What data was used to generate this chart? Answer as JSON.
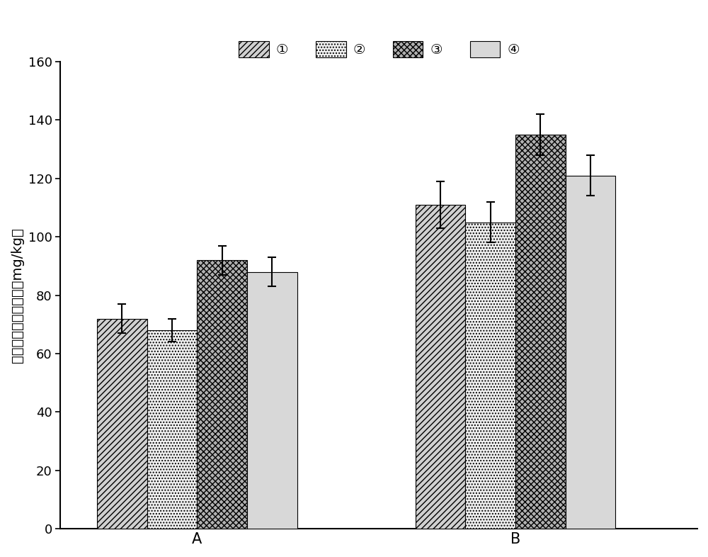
{
  "groups": [
    "A",
    "B"
  ],
  "series_labels": [
    "①",
    "②",
    "③",
    "④"
  ],
  "values": {
    "A": [
      72,
      68,
      92,
      88
    ],
    "B": [
      111,
      105,
      135,
      121
    ]
  },
  "errors": {
    "A": [
      5,
      4,
      5,
      5
    ],
    "B": [
      8,
      7,
      7,
      7
    ]
  },
  "ylabel": "植物地上部分镁含量（mg/kg）",
  "ylim": [
    0,
    160
  ],
  "yticks": [
    0,
    20,
    40,
    60,
    80,
    100,
    120,
    140,
    160
  ],
  "bar_width": 0.55,
  "background_color": "#ffffff",
  "bar_edge_color": "#000000",
  "error_capsize": 4,
  "hatch_patterns": [
    "////",
    "....",
    "xxxx",
    "~~~~"
  ],
  "bar_facecolors": [
    "#d0d0d0",
    "#f0f0f0",
    "#b0b0b0",
    "#d8d8d8"
  ],
  "axis_fontsize": 14,
  "tick_fontsize": 13,
  "legend_fontsize": 14
}
